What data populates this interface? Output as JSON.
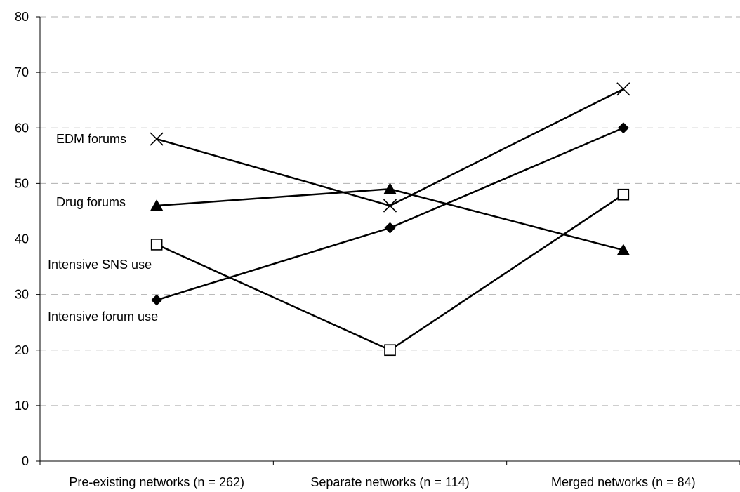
{
  "chart_data": {
    "type": "line",
    "title": "",
    "xlabel": "",
    "ylabel": "",
    "categories": [
      "Pre-existing networks (n = 262)",
      "Separate networks (n = 114)",
      "Merged networks (n = 84)"
    ],
    "ylim": [
      0,
      80
    ],
    "yticks": [
      0,
      10,
      20,
      30,
      40,
      50,
      60,
      70,
      80
    ],
    "grid": true,
    "legend": "none",
    "series": [
      {
        "name": "EDM forums",
        "values": [
          58,
          46,
          67
        ],
        "marker": "x",
        "color": "#000000"
      },
      {
        "name": "Drug forums",
        "values": [
          46,
          49,
          38
        ],
        "marker": "triangle",
        "color": "#000000"
      },
      {
        "name": "Intensive SNS use",
        "values": [
          39,
          20,
          48
        ],
        "marker": "square-open",
        "color": "#000000"
      },
      {
        "name": "Intensive forum use",
        "values": [
          29,
          42,
          60
        ],
        "marker": "diamond",
        "color": "#000000"
      }
    ]
  }
}
